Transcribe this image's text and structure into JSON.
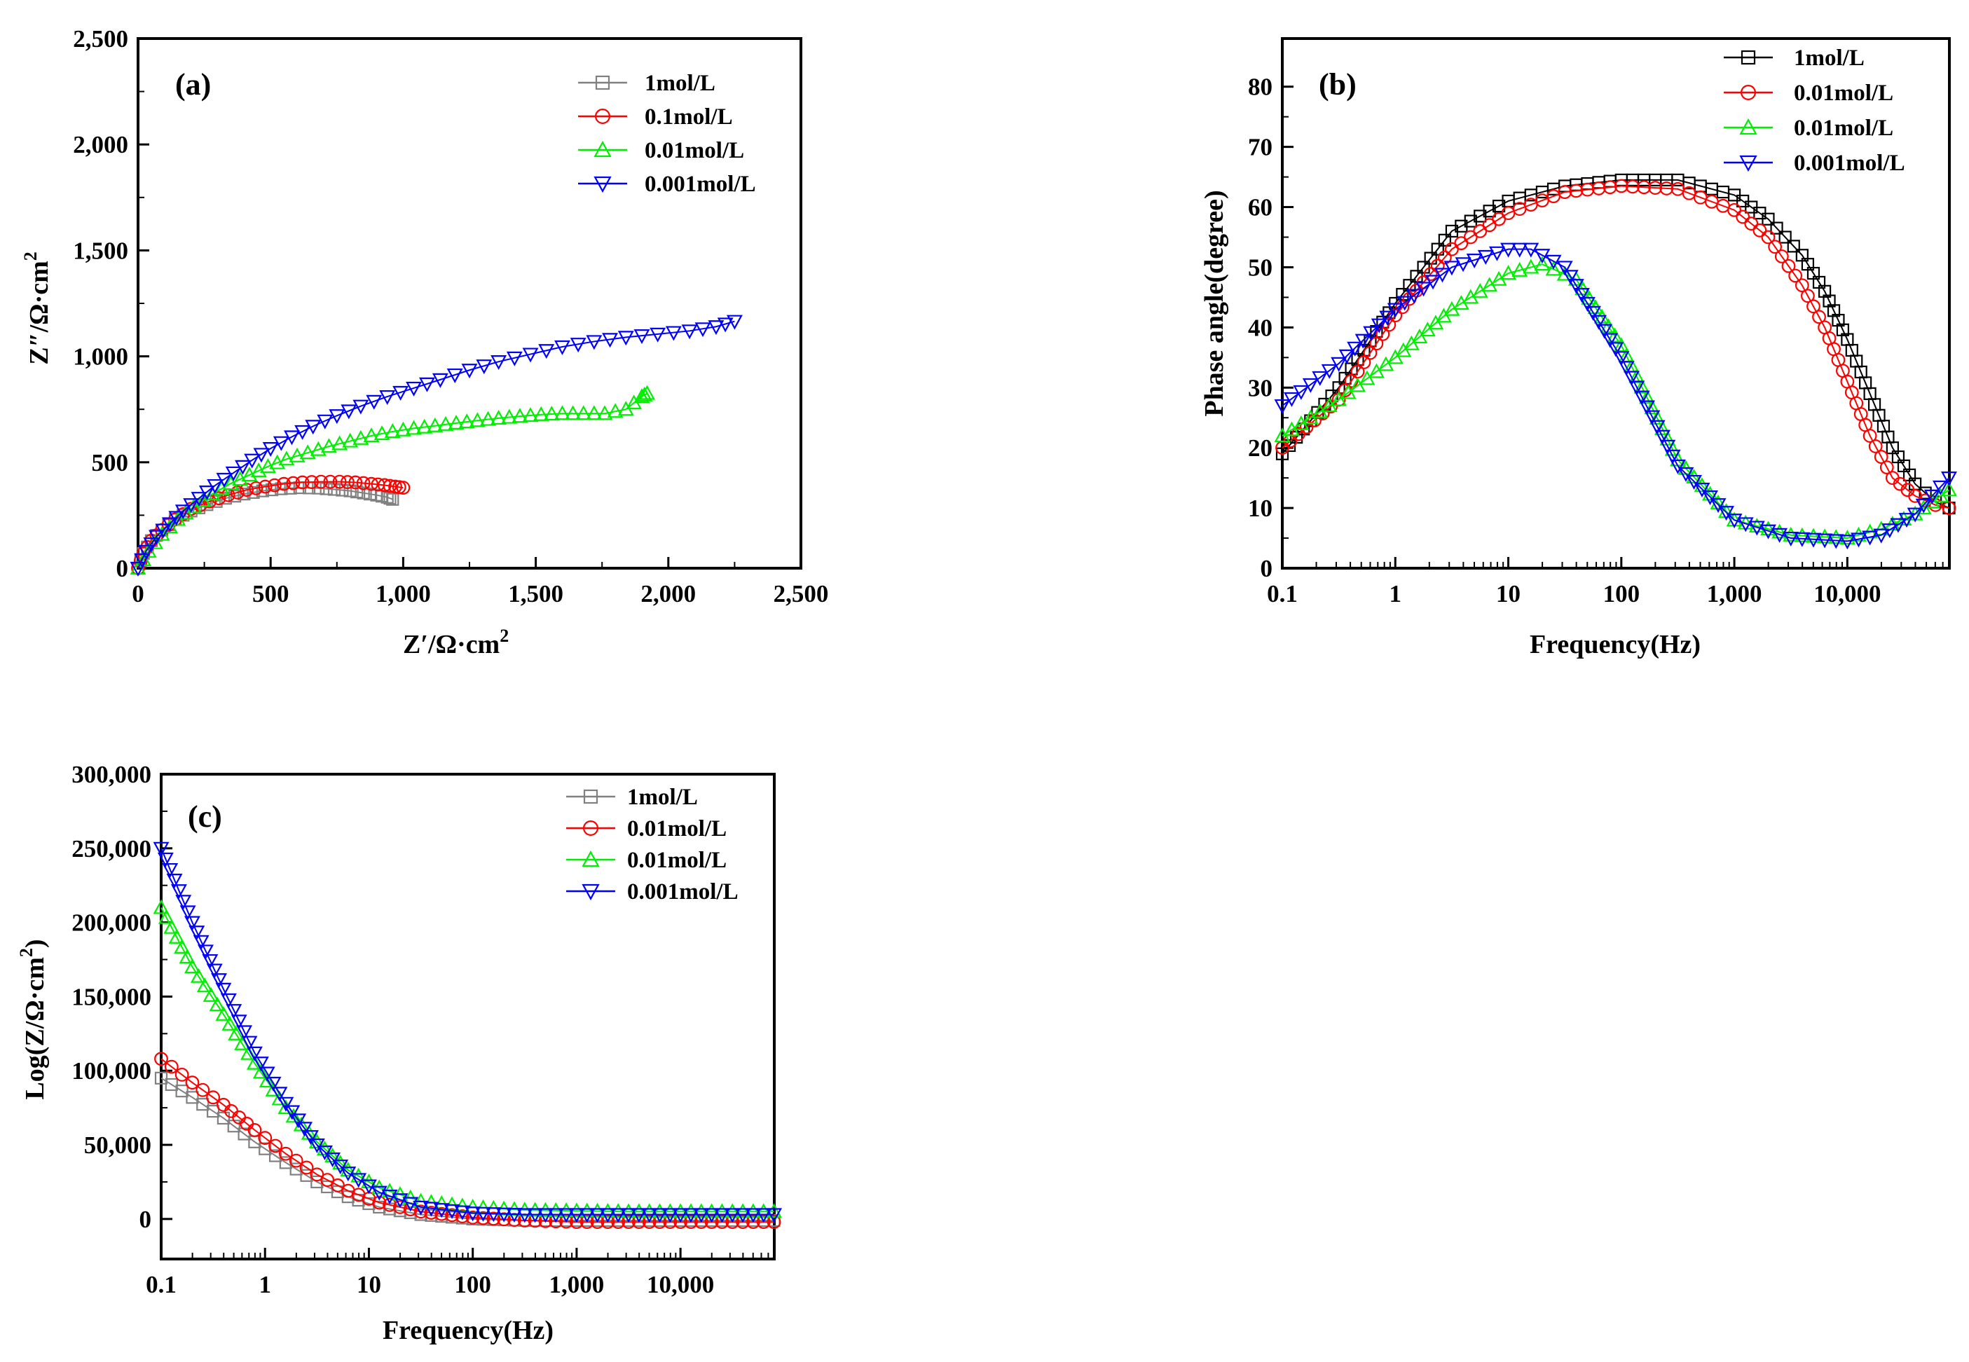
{
  "chart_data": [
    {
      "panel": "a",
      "type": "scatter",
      "panel_label": "(a)",
      "xlabel": "Z′/Ω·cm",
      "xlabel_sup": "2",
      "ylabel": "Z″/Ω·cm",
      "ylabel_sup": "2",
      "xlim": [
        0,
        2500
      ],
      "ylim": [
        0,
        2500
      ],
      "xscale": "linear",
      "xticks": [
        0,
        500,
        1000,
        1500,
        2000,
        2500
      ],
      "yticks": [
        0,
        500,
        1000,
        1500,
        2000,
        2500
      ],
      "xtick_labels": [
        "0",
        "500",
        "1,000",
        "1,500",
        "2,000",
        "2,500"
      ],
      "ytick_labels": [
        "0",
        "500",
        "1,000",
        "1,500",
        "2,000",
        "2,500"
      ],
      "legend_position": "top-right",
      "series": [
        {
          "name": "1mol/L",
          "color": "#808080",
          "marker": "square",
          "x": [
            0,
            20,
            50,
            90,
            140,
            200,
            260,
            330,
            400,
            470,
            540,
            610,
            680,
            740,
            800,
            850,
            900,
            940,
            960
          ],
          "y": [
            0,
            70,
            130,
            180,
            230,
            270,
            300,
            330,
            350,
            365,
            375,
            380,
            378,
            372,
            365,
            355,
            345,
            335,
            325
          ]
        },
        {
          "name": "0.1mol/L",
          "color": "#ff0000",
          "marker": "circle",
          "x": [
            0,
            20,
            50,
            90,
            140,
            200,
            270,
            340,
            410,
            480,
            550,
            620,
            690,
            760,
            820,
            880,
            930,
            970,
            1000
          ],
          "y": [
            0,
            70,
            130,
            180,
            230,
            280,
            315,
            345,
            370,
            385,
            398,
            405,
            408,
            408,
            405,
            398,
            392,
            385,
            380
          ]
        },
        {
          "name": "0.01mol/L",
          "color": "#00ee00",
          "marker": "triangle-up",
          "x": [
            0,
            40,
            90,
            150,
            210,
            280,
            350,
            420,
            490,
            560,
            640,
            720,
            800,
            880,
            960,
            1040,
            1120,
            1200,
            1280,
            1360,
            1440,
            1520,
            1600,
            1680,
            1760,
            1840,
            1900,
            1920
          ],
          "y": [
            0,
            80,
            160,
            230,
            290,
            350,
            400,
            440,
            480,
            515,
            545,
            575,
            600,
            625,
            645,
            660,
            672,
            685,
            697,
            708,
            717,
            725,
            730,
            730,
            730,
            750,
            810,
            825
          ]
        },
        {
          "name": "0.001mol/L",
          "color": "#0000ff",
          "marker": "triangle-down",
          "x": [
            0,
            30,
            70,
            120,
            170,
            230,
            290,
            360,
            430,
            500,
            580,
            660,
            750,
            840,
            940,
            1040,
            1140,
            1250,
            1360,
            1480,
            1600,
            1720,
            1840,
            1960,
            2080,
            2180,
            2250
          ],
          "y": [
            0,
            80,
            150,
            210,
            270,
            330,
            390,
            450,
            510,
            565,
            620,
            670,
            720,
            765,
            810,
            850,
            890,
            935,
            975,
            1010,
            1045,
            1070,
            1090,
            1105,
            1120,
            1140,
            1165
          ]
        }
      ]
    },
    {
      "panel": "b",
      "type": "scatter",
      "panel_label": "(b)",
      "xlabel": "Frequency(Hz)",
      "ylabel": "Phase angle(degree)",
      "xscale": "log",
      "xlim": [
        0.1,
        80000
      ],
      "ylim": [
        0,
        88
      ],
      "xticks": [
        0.1,
        1,
        10,
        100,
        1000,
        10000
      ],
      "xtick_labels": [
        "0.1",
        "1",
        "10",
        "100",
        "1,000",
        "10,000"
      ],
      "yticks": [
        0,
        10,
        20,
        30,
        40,
        50,
        60,
        70,
        80
      ],
      "ytick_labels": [
        "0",
        "10",
        "20",
        "30",
        "40",
        "50",
        "60",
        "70",
        "80"
      ],
      "legend_position": "top-right",
      "series": [
        {
          "name": "1mol/L",
          "color": "#000000",
          "marker": "square",
          "logx": [
            -1,
            -0.5,
            0,
            0.5,
            1,
            1.5,
            2,
            2.5,
            3,
            3.3,
            3.6,
            3.8,
            4,
            4.2,
            4.4,
            4.6,
            4.78,
            4.9
          ],
          "y": [
            19,
            30,
            44,
            56,
            61,
            63.5,
            64.5,
            64.5,
            62,
            58,
            52,
            46,
            38,
            29,
            20,
            14,
            11,
            10
          ]
        },
        {
          "name": "0.01mol/L",
          "color": "#ff0000",
          "marker": "circle",
          "logx": [
            -1,
            -0.5,
            0,
            0.5,
            1,
            1.5,
            2,
            2.5,
            3,
            3.3,
            3.6,
            3.8,
            4,
            4.2,
            4.4,
            4.6,
            4.78,
            4.9
          ],
          "y": [
            20,
            28,
            42,
            53,
            59,
            62.5,
            63.5,
            63,
            59.5,
            55,
            47,
            40,
            31,
            22,
            15,
            12,
            10.5,
            10
          ]
        },
        {
          "name": "0.01mol/L",
          "color": "#00ee00",
          "marker": "triangle-up",
          "logx": [
            -1,
            -0.5,
            0,
            0.5,
            1,
            1.3,
            1.6,
            2,
            2.5,
            3,
            3.5,
            4,
            4.3,
            4.6,
            4.9
          ],
          "y": [
            22,
            28,
            35,
            43,
            49,
            50.5,
            48,
            37,
            18,
            8,
            5.5,
            5,
            6.5,
            9,
            13
          ]
        },
        {
          "name": "0.001mol/L",
          "color": "#0000ff",
          "marker": "triangle-down",
          "logx": [
            -1,
            -0.5,
            0,
            0.5,
            1,
            1.2,
            1.5,
            2,
            2.5,
            3,
            3.5,
            4,
            4.3,
            4.6,
            4.9
          ],
          "y": [
            27,
            34,
            43,
            50,
            53,
            53,
            50,
            35,
            17,
            8,
            5,
            4.5,
            5.5,
            9,
            15
          ]
        }
      ]
    },
    {
      "panel": "c",
      "type": "scatter",
      "panel_label": "(c)",
      "xlabel": "Frequency(Hz)",
      "ylabel": "Log(Z/Ω·cm",
      "ylabel_sup": "2",
      "ylabel_end": ")",
      "xscale": "log",
      "xlim": [
        0.1,
        80000
      ],
      "ylim": [
        -27000,
        300000
      ],
      "xticks": [
        0.1,
        1,
        10,
        100,
        1000,
        10000
      ],
      "xtick_labels": [
        "0.1",
        "1",
        "10",
        "100",
        "1,000",
        "10,000"
      ],
      "yticks": [
        0,
        50000,
        100000,
        150000,
        200000,
        250000,
        300000
      ],
      "ytick_labels": [
        "0",
        "50,000",
        "100,000",
        "150,000",
        "200,000",
        "250,000",
        "300,000"
      ],
      "legend_position": "top-right",
      "series": [
        {
          "name": "1mol/L",
          "color": "#808080",
          "marker": "square",
          "logx": [
            -1,
            -0.7,
            -0.4,
            -0.1,
            0.2,
            0.5,
            0.8,
            1.1,
            1.5,
            2,
            2.5,
            3,
            3.5,
            4,
            4.5,
            4.9
          ],
          "y": [
            95000,
            82000,
            68000,
            52000,
            38000,
            25000,
            15000,
            8000,
            3000,
            0,
            -1000,
            -1000,
            -1000,
            -1000,
            -1000,
            -1000
          ]
        },
        {
          "name": "0.01mol/L",
          "color": "#ff0000",
          "marker": "circle",
          "logx": [
            -1,
            -0.7,
            -0.4,
            -0.1,
            0.2,
            0.5,
            0.8,
            1.1,
            1.5,
            2,
            2.5,
            3,
            3.5,
            4,
            4.5,
            4.9
          ],
          "y": [
            108000,
            92000,
            77000,
            60000,
            44000,
            30000,
            19000,
            11000,
            5000,
            1000,
            -1000,
            -2000,
            -2000,
            -2000,
            -2000,
            -2000
          ]
        },
        {
          "name": "0.01mol/L",
          "color": "#00ee00",
          "marker": "triangle-up",
          "logx": [
            -1,
            -0.7,
            -0.4,
            -0.1,
            0.2,
            0.5,
            0.8,
            1.1,
            1.5,
            2,
            2.5,
            3,
            3.5,
            4,
            4.5,
            4.9
          ],
          "y": [
            210000,
            170000,
            138000,
            105000,
            75000,
            52000,
            33000,
            21000,
            12000,
            8000,
            6000,
            5500,
            5000,
            5000,
            5000,
            5000
          ]
        },
        {
          "name": "0.001mol/L",
          "color": "#0000ff",
          "marker": "triangle-down",
          "logx": [
            -1,
            -0.7,
            -0.4,
            -0.1,
            0.2,
            0.5,
            0.8,
            1.1,
            1.5,
            2,
            2.5,
            3,
            3.5,
            4,
            4.5,
            4.9
          ],
          "y": [
            250000,
            200000,
            155000,
            112000,
            78000,
            50000,
            31000,
            18000,
            8000,
            4000,
            3000,
            3000,
            3000,
            3000,
            3000,
            3000
          ]
        }
      ]
    }
  ]
}
